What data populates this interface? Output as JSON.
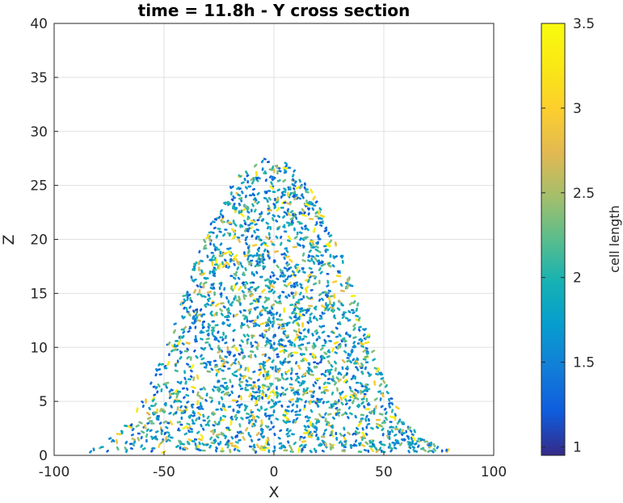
{
  "chart_data": {
    "type": "scatter",
    "title": "time = 11.8h - Y cross section",
    "xlabel": "X",
    "ylabel": "Z",
    "xlim": [
      -100,
      100
    ],
    "ylim": [
      0,
      40
    ],
    "xticks": [
      "-100",
      "-50",
      "0",
      "50",
      "100"
    ],
    "yticks": [
      "0",
      "5",
      "10",
      "15",
      "20",
      "25",
      "30",
      "35",
      "40"
    ],
    "grid": true,
    "colormap": "parula",
    "colorbar": {
      "label": "cell length",
      "lim": [
        0.95,
        3.5
      ],
      "ticks": [
        "1",
        "1.5",
        "2",
        "2.5",
        "3",
        "3.5"
      ]
    },
    "profile": {
      "x": [
        -88,
        -80,
        -70,
        -60,
        -50,
        -40,
        -30,
        -20,
        -10,
        0,
        10,
        20,
        30,
        40,
        50,
        60,
        70,
        80,
        90
      ],
      "z_max": [
        0.6,
        0.9,
        2.2,
        5.0,
        9.5,
        15.5,
        21.0,
        24.8,
        27.2,
        27.8,
        26.6,
        23.6,
        19.0,
        13.0,
        7.0,
        3.0,
        1.2,
        0.7,
        0.6
      ]
    },
    "colors": {
      "background": "#ffffff",
      "grid": "#e0e0e0",
      "axis": "#262626"
    }
  }
}
